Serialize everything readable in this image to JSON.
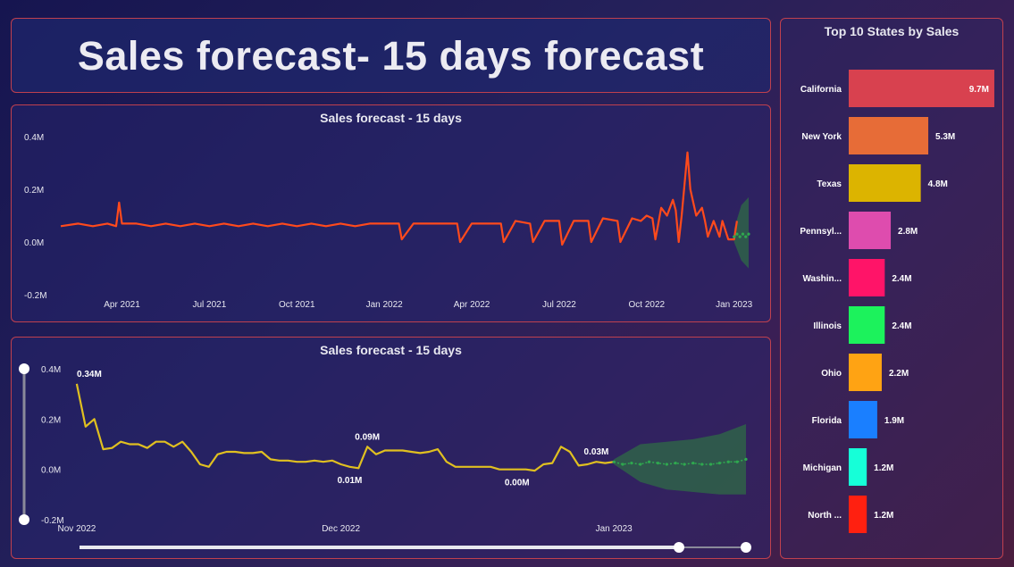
{
  "page": {
    "title": "Sales forecast- 15 days forecast"
  },
  "colors": {
    "actual_line": "#ff4a1c",
    "zoom_line": "#e0c020",
    "forecast_line": "#2fa84f",
    "band": "#2f6b45"
  },
  "chart_data": [
    {
      "type": "line",
      "title": "Sales forecast - 15 days",
      "xlabel": "",
      "ylabel": "",
      "ylim": [
        -0.2,
        0.4
      ],
      "y_ticks": [
        "0.4M",
        "0.2M",
        "0.0M",
        "-0.2M"
      ],
      "y_tick_values": [
        0.4,
        0.2,
        0.0,
        -0.2
      ],
      "x_ticks": [
        "Apr 2021",
        "Jul 2021",
        "Oct 2021",
        "Jan 2022",
        "Apr 2022",
        "Jul 2022",
        "Oct 2022",
        "Jan 2023"
      ],
      "x_tick_positions": [
        2.0,
        5.0,
        8.0,
        11.0,
        14.0,
        17.0,
        20.0,
        23.0
      ],
      "x_range": [
        -0.1,
        23.5
      ],
      "series": [
        {
          "name": "Sales",
          "style": "actual",
          "x": [
            -0.1,
            0.5,
            1.0,
            1.5,
            1.8,
            1.9,
            2.0,
            2.5,
            3.0,
            3.5,
            4.0,
            4.5,
            5.0,
            5.5,
            6.0,
            6.5,
            7.0,
            7.5,
            8.0,
            8.5,
            9.0,
            9.5,
            10.0,
            10.5,
            11.0,
            11.5,
            11.6,
            12.0,
            12.5,
            13.0,
            13.5,
            13.6,
            14.0,
            14.5,
            15.0,
            15.1,
            15.5,
            16.0,
            16.1,
            16.5,
            17.0,
            17.1,
            17.5,
            18.0,
            18.1,
            18.5,
            19.0,
            19.1,
            19.5,
            19.8,
            20.0,
            20.2,
            20.3,
            20.5,
            20.7,
            20.9,
            21.0,
            21.1,
            21.2,
            21.4,
            21.5,
            21.7,
            21.9,
            22.0,
            22.1,
            22.3,
            22.5,
            22.6,
            22.8,
            23.0,
            23.1
          ],
          "values": [
            0.06,
            0.07,
            0.06,
            0.07,
            0.06,
            0.15,
            0.07,
            0.07,
            0.06,
            0.07,
            0.06,
            0.07,
            0.06,
            0.07,
            0.06,
            0.07,
            0.06,
            0.07,
            0.06,
            0.07,
            0.06,
            0.07,
            0.06,
            0.07,
            0.07,
            0.07,
            0.01,
            0.07,
            0.07,
            0.07,
            0.07,
            0.0,
            0.07,
            0.07,
            0.07,
            0.0,
            0.08,
            0.07,
            0.0,
            0.08,
            0.08,
            -0.01,
            0.08,
            0.08,
            0.0,
            0.09,
            0.08,
            0.0,
            0.09,
            0.08,
            0.1,
            0.09,
            0.01,
            0.13,
            0.1,
            0.16,
            0.12,
            0.0,
            0.1,
            0.34,
            0.2,
            0.1,
            0.13,
            0.08,
            0.02,
            0.08,
            0.02,
            0.08,
            0.01,
            0.01,
            0.08
          ]
        },
        {
          "name": "Forecast",
          "style": "forecast",
          "x": [
            23.0,
            23.1,
            23.2,
            23.3,
            23.4,
            23.5
          ],
          "values": [
            0.02,
            0.03,
            0.02,
            0.03,
            0.02,
            0.03
          ]
        }
      ],
      "band": {
        "x": [
          23.0,
          23.25,
          23.5
        ],
        "upper": [
          0.05,
          0.14,
          0.17
        ],
        "lower": [
          0.0,
          -0.07,
          -0.1
        ]
      }
    },
    {
      "type": "line",
      "title": "Sales forecast - 15 days",
      "xlabel": "",
      "ylabel": "",
      "ylim": [
        -0.2,
        0.4
      ],
      "y_ticks": [
        "0.4M",
        "0.2M",
        "0.0M",
        "-0.2M"
      ],
      "y_tick_values": [
        0.4,
        0.2,
        0.0,
        -0.2
      ],
      "x_ticks": [
        "Nov 2022",
        "Dec 2022",
        "Jan 2023"
      ],
      "x_tick_positions": [
        0,
        30,
        61
      ],
      "x_range": [
        -0.5,
        76
      ],
      "series": [
        {
          "name": "Sales",
          "style": "actual",
          "x": [
            0,
            1,
            2,
            3,
            4,
            5,
            6,
            7,
            8,
            9,
            10,
            11,
            12,
            13,
            14,
            15,
            16,
            17,
            18,
            19,
            20,
            21,
            22,
            23,
            24,
            25,
            26,
            27,
            28,
            29,
            30,
            31,
            32,
            33,
            34,
            35,
            36,
            37,
            38,
            39,
            40,
            41,
            42,
            43,
            44,
            45,
            46,
            47,
            48,
            49,
            50,
            51,
            52,
            53,
            54,
            55,
            56,
            57,
            58,
            59,
            60,
            61
          ],
          "values": [
            0.34,
            0.17,
            0.2,
            0.08,
            0.085,
            0.11,
            0.1,
            0.1,
            0.085,
            0.11,
            0.11,
            0.09,
            0.11,
            0.07,
            0.02,
            0.01,
            0.06,
            0.07,
            0.07,
            0.065,
            0.065,
            0.07,
            0.04,
            0.035,
            0.035,
            0.03,
            0.03,
            0.035,
            0.03,
            0.035,
            0.02,
            0.01,
            0.005,
            0.09,
            0.06,
            0.075,
            0.075,
            0.075,
            0.07,
            0.065,
            0.07,
            0.08,
            0.03,
            0.01,
            0.01,
            0.01,
            0.01,
            0.01,
            0.0,
            0.0,
            0.0,
            0.0,
            -0.005,
            0.02,
            0.025,
            0.09,
            0.07,
            0.015,
            0.02,
            0.03,
            0.025,
            0.03
          ]
        },
        {
          "name": "Forecast",
          "style": "forecast",
          "x": [
            61,
            62,
            63,
            64,
            65,
            66,
            67,
            68,
            69,
            70,
            71,
            72,
            73,
            74,
            75,
            76
          ],
          "values": [
            0.03,
            0.02,
            0.025,
            0.02,
            0.03,
            0.025,
            0.02,
            0.025,
            0.02,
            0.025,
            0.02,
            0.02,
            0.025,
            0.03,
            0.03,
            0.04
          ]
        }
      ],
      "band": {
        "x": [
          61,
          64,
          67,
          70,
          73,
          76
        ],
        "upper": [
          0.04,
          0.1,
          0.11,
          0.12,
          0.14,
          0.18
        ],
        "lower": [
          0.02,
          -0.05,
          -0.08,
          -0.09,
          -0.1,
          -0.1
        ]
      },
      "data_labels": [
        {
          "x": 0,
          "y": 0.34,
          "text": "0.34M",
          "pos": "above"
        },
        {
          "x": 33,
          "y": 0.09,
          "text": "0.09M",
          "pos": "above"
        },
        {
          "x": 31,
          "y": 0.01,
          "text": "0.01M",
          "pos": "below"
        },
        {
          "x": 50,
          "y": 0.0,
          "text": "0.00M",
          "pos": "below"
        },
        {
          "x": 59,
          "y": 0.03,
          "text": "0.03M",
          "pos": "above"
        }
      ]
    },
    {
      "type": "bar",
      "orientation": "horizontal",
      "title": "Top 10 States by Sales",
      "categories": [
        "California",
        "New York",
        "Texas",
        "Pennsyl...",
        "Washin...",
        "Illinois",
        "Ohio",
        "Florida",
        "Michigan",
        "North ..."
      ],
      "values": [
        9.7,
        5.3,
        4.8,
        2.8,
        2.4,
        2.4,
        2.2,
        1.9,
        1.2,
        1.2
      ],
      "value_labels": [
        "9.7M",
        "5.3M",
        "4.8M",
        "2.8M",
        "2.4M",
        "2.4M",
        "2.2M",
        "1.9M",
        "1.2M",
        "1.2M"
      ],
      "colors": [
        "#d8414f",
        "#e76c37",
        "#dcb400",
        "#de4cae",
        "#ff1468",
        "#1cf25c",
        "#ffa313",
        "#1a7fff",
        "#16ffd8",
        "#ff2010"
      ],
      "xlim": [
        0,
        10
      ]
    }
  ]
}
